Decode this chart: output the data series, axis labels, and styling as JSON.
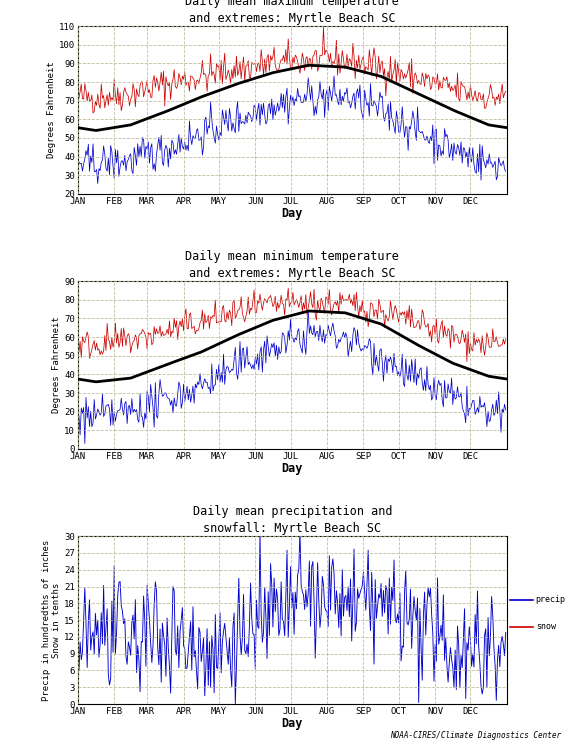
{
  "title1": "Daily mean maximum temperature\nand extremes: Myrtle Beach SC",
  "title2": "Daily mean minimum temperature\nand extremes: Myrtle Beach SC",
  "title3": "Daily mean precipitation and\nsnowfall: Myrtle Beach SC",
  "ylabel1": "Degrees Fahrenheit",
  "ylabel2": "Degrees Fahrenheit",
  "ylabel3": "Precip in hundredths of inches\nSnow in tenths",
  "xlabel": "Day",
  "months": [
    "JAN",
    "FEB",
    "MAR",
    "APR",
    "MAY",
    "JUN",
    "JUL",
    "AUG",
    "SEP",
    "OCT",
    "NOV",
    "DEC"
  ],
  "bg_color": "#ffffff",
  "grid_color": "#b8b896",
  "line_black": "#000000",
  "line_red": "#cc0000",
  "line_blue": "#0000cc",
  "mean_max_temps": [
    54,
    57,
    64,
    72,
    79,
    85,
    89,
    88,
    83,
    74,
    65,
    57
  ],
  "mean_min_temps": [
    36,
    38,
    45,
    52,
    61,
    69,
    74,
    73,
    67,
    56,
    46,
    39
  ],
  "red_max_base": [
    72,
    74,
    79,
    83,
    87,
    90,
    92,
    92,
    88,
    82,
    76,
    72
  ],
  "blue_max_base": [
    36,
    38,
    44,
    52,
    60,
    68,
    72,
    72,
    65,
    54,
    44,
    36
  ],
  "red_min_base": [
    56,
    58,
    63,
    68,
    73,
    77,
    78,
    78,
    74,
    67,
    60,
    56
  ],
  "blue_min_base": [
    17,
    20,
    26,
    34,
    44,
    54,
    62,
    60,
    50,
    37,
    27,
    18
  ],
  "precip_mean": [
    13,
    11,
    13,
    9,
    12,
    16,
    19,
    18,
    18,
    14,
    10,
    11
  ],
  "ylim1": [
    20,
    110
  ],
  "ylim2": [
    0,
    90
  ],
  "ylim3": [
    0,
    30
  ],
  "yticks1": [
    20,
    30,
    40,
    50,
    60,
    70,
    80,
    90,
    100,
    110
  ],
  "yticks2": [
    0,
    10,
    20,
    30,
    40,
    50,
    60,
    70,
    80,
    90
  ],
  "yticks3": [
    0,
    3,
    6,
    9,
    12,
    15,
    18,
    21,
    24,
    27,
    30
  ],
  "footer": "NOAA-CIRES/Climate Diagnostics Center"
}
